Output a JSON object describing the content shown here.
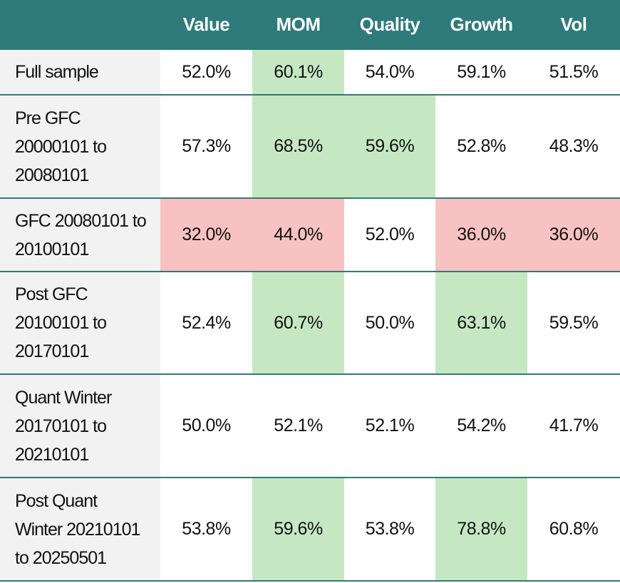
{
  "table": {
    "header": [
      "",
      "Value",
      "MOM",
      "Quality",
      "Growth",
      "Vol"
    ],
    "header_color": "#2f7a7a",
    "rows": [
      {
        "label": "Full sample",
        "cells": [
          "52.0%",
          "60.1%",
          "54.0%",
          "59.1%",
          "51.5%"
        ],
        "fills": [
          null,
          "#c5e8c3",
          null,
          null,
          null
        ]
      },
      {
        "label": "Pre GFC 20000101 to 20080101",
        "cells": [
          "57.3%",
          "68.5%",
          "59.6%",
          "52.8%",
          "48.3%"
        ],
        "fills": [
          null,
          "#c5e8c3",
          "#c5e8c3",
          null,
          null
        ]
      },
      {
        "label": "GFC 20080101 to 20100101",
        "cells": [
          "32.0%",
          "44.0%",
          "52.0%",
          "36.0%",
          "36.0%"
        ],
        "fills": [
          "#f8c2c2",
          "#f8c2c2",
          null,
          "#f8c2c2",
          "#f8c2c2"
        ]
      },
      {
        "label": "Post GFC 20100101 to 20170101",
        "cells": [
          "52.4%",
          "60.7%",
          "50.0%",
          "63.1%",
          "59.5%"
        ],
        "fills": [
          null,
          "#c5e8c3",
          null,
          "#c5e8c3",
          null
        ]
      },
      {
        "label": "Quant Winter 20170101 to 20210101",
        "cells": [
          "50.0%",
          "52.1%",
          "52.1%",
          "54.2%",
          "41.7%"
        ],
        "fills": [
          null,
          null,
          null,
          null,
          null
        ]
      },
      {
        "label": "Post Quant Winter 20210101 to 20250501",
        "cells": [
          "53.8%",
          "59.6%",
          "53.8%",
          "78.8%",
          "60.8%"
        ],
        "fills": [
          null,
          "#c5e8c3",
          null,
          "#c5e8c3",
          null
        ]
      }
    ]
  }
}
